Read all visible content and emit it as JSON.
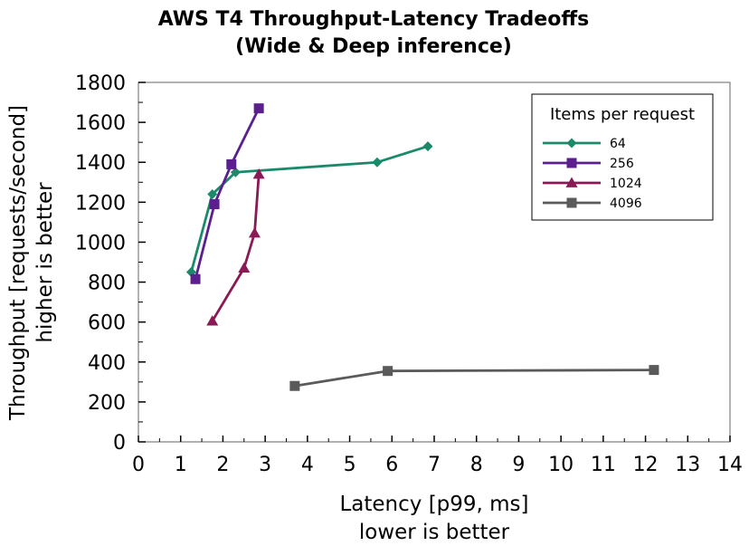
{
  "chart_data": {
    "type": "line",
    "title_line1": "AWS T4 Throughput-Latency Tradeoffs",
    "title_line2": "(Wide & Deep inference)",
    "xlabel_line1": "Latency [p99, ms]",
    "xlabel_line2": "lower is better",
    "ylabel_line1": "Throughput [requests/second]",
    "ylabel_line2": "higher is better",
    "xlim": [
      0,
      14
    ],
    "ylim": [
      0,
      1800
    ],
    "x_ticks": [
      "0",
      "1",
      "2",
      "3",
      "4",
      "5",
      "6",
      "7",
      "8",
      "9",
      "10",
      "11",
      "12",
      "13",
      "14"
    ],
    "y_ticks": [
      "0",
      "200",
      "400",
      "600",
      "800",
      "1000",
      "1200",
      "1400",
      "1600",
      "1800"
    ],
    "grid": false,
    "legend_title": "Items per request",
    "legend_position": "top-right",
    "series": [
      {
        "name": "64",
        "color": "#1a8a6a",
        "marker": "diamond",
        "points": [
          [
            1.25,
            850
          ],
          [
            1.75,
            1240
          ],
          [
            2.3,
            1350
          ],
          [
            5.65,
            1400
          ],
          [
            6.85,
            1480
          ]
        ]
      },
      {
        "name": "256",
        "color": "#5b1f8e",
        "marker": "square",
        "points": [
          [
            1.35,
            815
          ],
          [
            1.8,
            1190
          ],
          [
            2.2,
            1390
          ],
          [
            2.85,
            1670
          ]
        ]
      },
      {
        "name": "1024",
        "color": "#8a1a55",
        "marker": "triangle",
        "points": [
          [
            1.75,
            605
          ],
          [
            2.5,
            870
          ],
          [
            2.75,
            1045
          ],
          [
            2.85,
            1340
          ]
        ]
      },
      {
        "name": "4096",
        "color": "#5a5a5a",
        "marker": "square",
        "points": [
          [
            3.7,
            280
          ],
          [
            5.9,
            355
          ],
          [
            12.2,
            360
          ]
        ]
      }
    ]
  }
}
